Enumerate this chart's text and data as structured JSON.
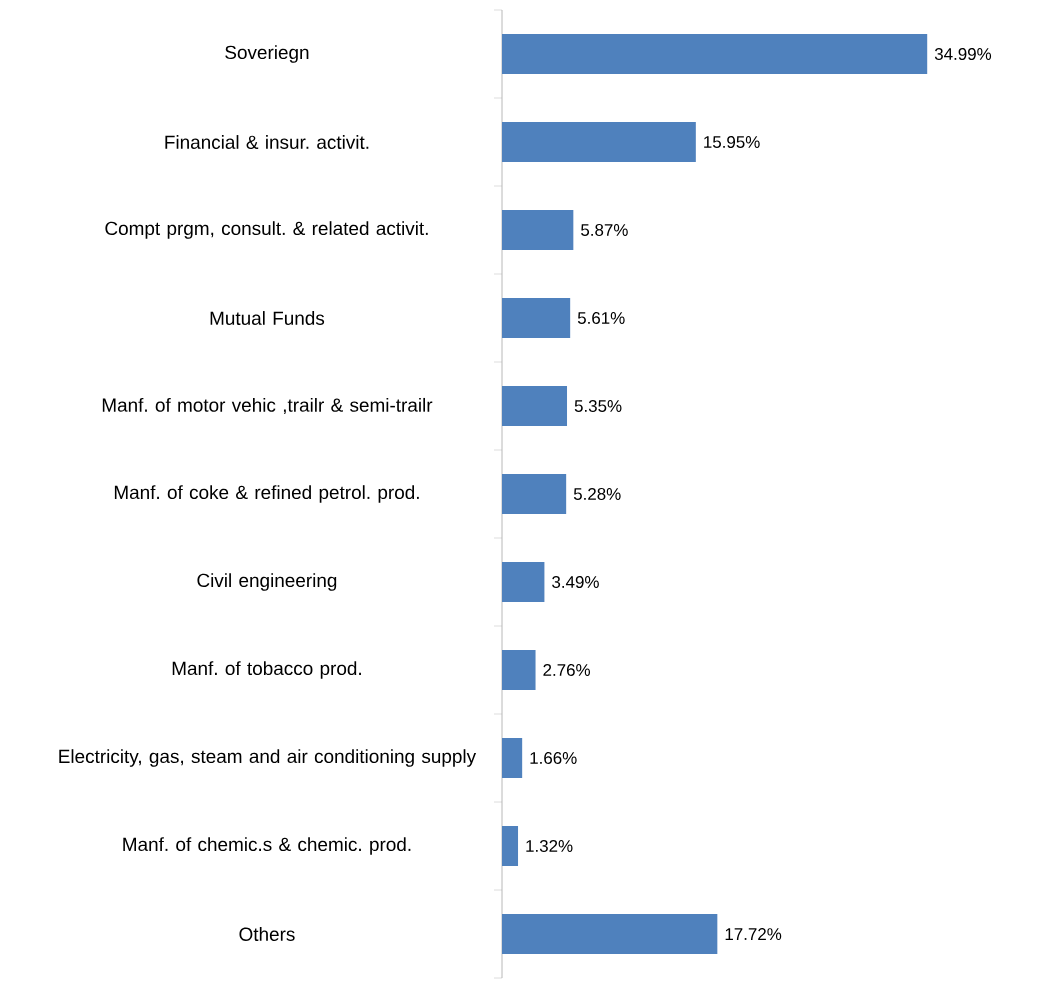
{
  "chart_data": {
    "type": "bar",
    "orientation": "horizontal",
    "categories": [
      "Soveriegn",
      "Financial & insur. activit.",
      "Compt prgm, consult. & related activit.",
      "Mutual Funds",
      "Manf. of motor vehic ,trailr & semi-trailr",
      "Manf. of coke & refined petrol. prod.",
      "Civil engineering",
      "Manf. of tobacco prod.",
      "Electricity, gas, steam and air conditioning supply",
      "Manf. of chemic.s & chemic. prod.",
      "Others"
    ],
    "values": [
      34.99,
      15.95,
      5.87,
      5.61,
      5.35,
      5.28,
      3.49,
      2.76,
      1.66,
      1.32,
      17.72
    ],
    "value_labels": [
      "34.99%",
      "15.95%",
      "5.87%",
      "5.61%",
      "5.35%",
      "5.28%",
      "3.49%",
      "2.76%",
      "1.66%",
      "1.32%",
      "17.72%"
    ],
    "color": "#4f81bd"
  }
}
